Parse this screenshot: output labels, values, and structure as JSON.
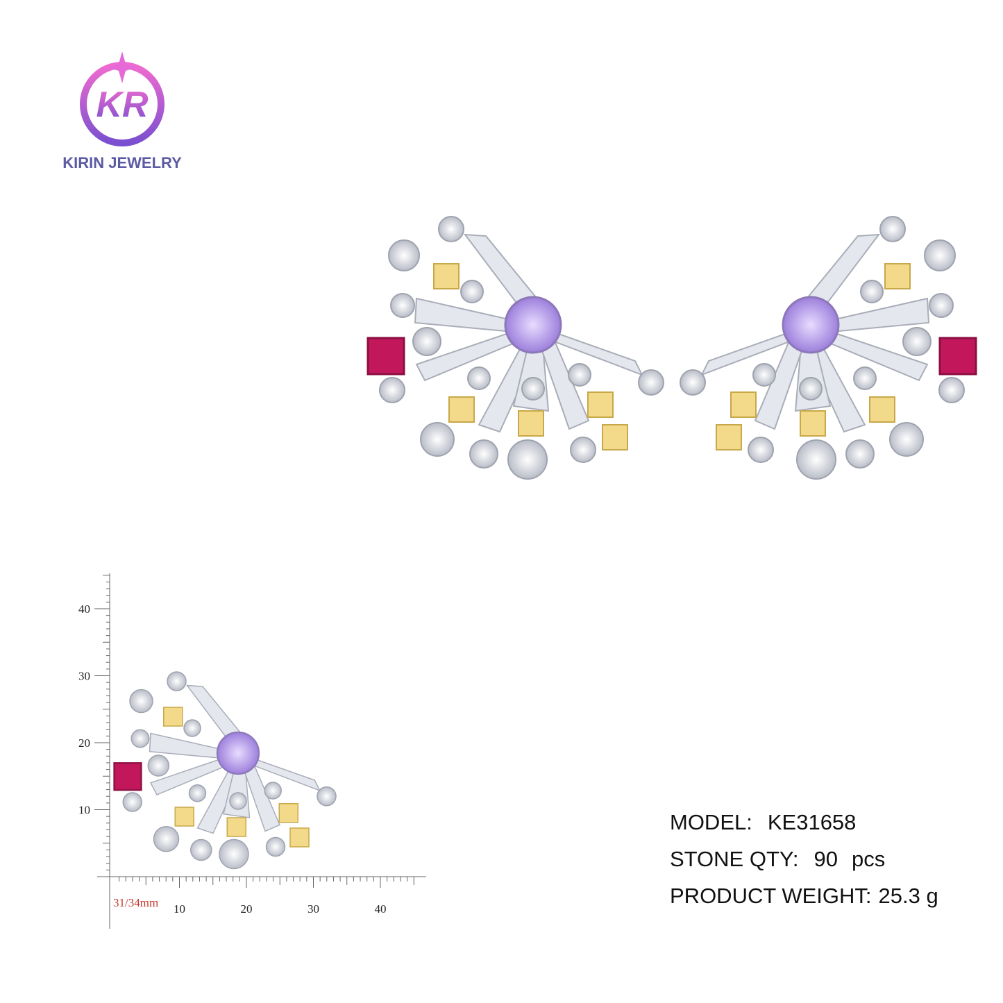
{
  "logo": {
    "monogram": "KR",
    "brand": "KIRIN JEWELRY"
  },
  "specs": [
    {
      "label": "MODEL:",
      "value": "KE31658"
    },
    {
      "label": "STONE QTY:",
      "value": "90",
      "unit": "pcs"
    },
    {
      "label": "PRODUCT WEIGHT:",
      "value": "25.3 g"
    }
  ],
  "ruler": {
    "size_label": "31/34mm",
    "y_ticks": [
      10,
      20,
      30,
      40
    ],
    "x_ticks": [
      10,
      20,
      30,
      40
    ]
  }
}
